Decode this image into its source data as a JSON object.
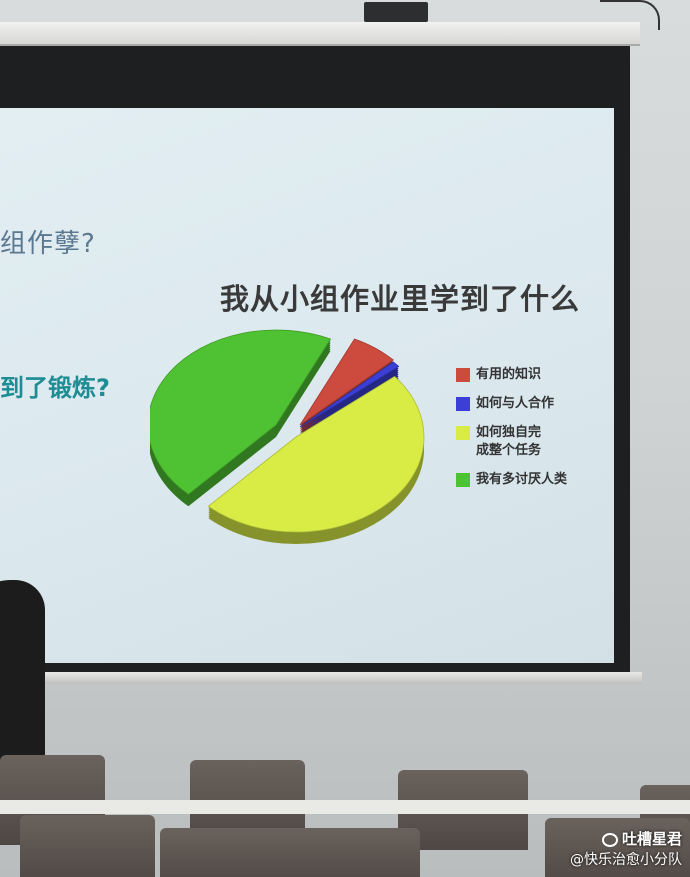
{
  "slide": {
    "partial_heading_1": "组作孽?",
    "partial_heading_2": "到了锻炼?",
    "chart_title": "我从小组作业里学到了什么"
  },
  "chart_data": {
    "type": "pie",
    "title": "我从小组作业里学到了什么",
    "legend_position": "right",
    "series": [
      {
        "name": "有用的知识",
        "value": 6,
        "color": "#cc4a3e"
      },
      {
        "name": "如何与人合作",
        "value": 1,
        "color": "#3b3fd6"
      },
      {
        "name": "如何独自完\n成整个任务",
        "value": 48,
        "color": "#d8ec45"
      },
      {
        "name": "我有多讨厌人类",
        "value": 45,
        "color": "#4fc233"
      }
    ]
  },
  "watermark": {
    "line1": "吐槽星君",
    "line2": "@快乐治愈小分队"
  }
}
